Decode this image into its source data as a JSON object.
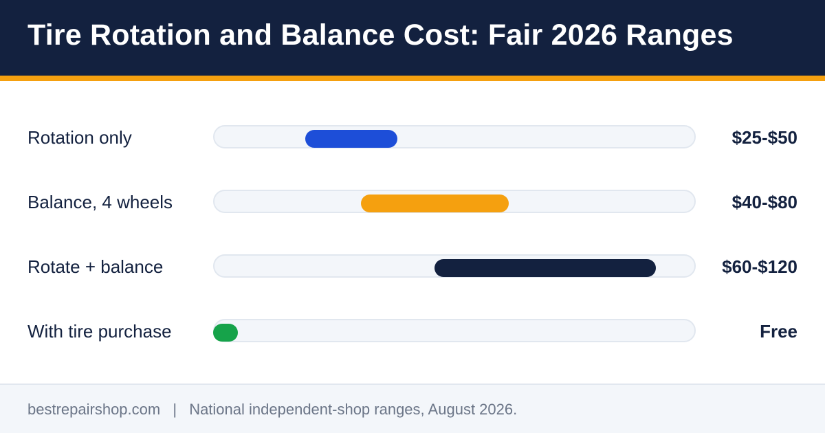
{
  "header": {
    "title": "Tire Rotation and Balance Cost: Fair 2026 Ranges"
  },
  "colors": {
    "header_bg": "#13213f",
    "accent": "#f5a00f",
    "track_bg": "#f3f6fa"
  },
  "chart_data": {
    "type": "bar",
    "orientation": "horizontal-range",
    "x_range": [
      0,
      130
    ],
    "categories": [
      "Rotation only",
      "Balance, 4 wheels",
      "Rotate + balance",
      "With tire purchase"
    ],
    "ranges": [
      {
        "low": 25,
        "high": 50,
        "label": "$25-$50",
        "color": "#1d4ed8"
      },
      {
        "low": 40,
        "high": 80,
        "label": "$40-$80",
        "color": "#f5a00f"
      },
      {
        "low": 60,
        "high": 120,
        "label": "$60-$120",
        "color": "#13213f"
      },
      {
        "low": 0,
        "high": 0,
        "label": "Free",
        "color": "#16a34a"
      }
    ],
    "grid": false,
    "legend": "none"
  },
  "footer": {
    "site": "bestrepairshop.com",
    "separator": "|",
    "note": "National independent-shop ranges, August 2026."
  }
}
